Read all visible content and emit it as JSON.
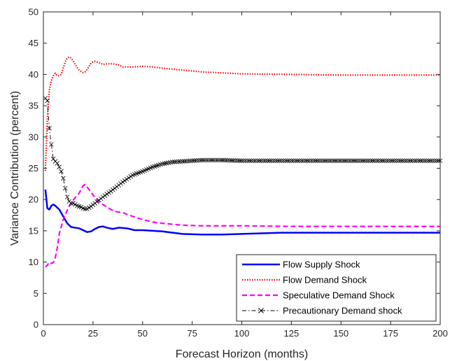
{
  "chart_data": {
    "type": "line",
    "title": "",
    "xlabel": "Forecast Horizon (months)",
    "ylabel": "Variance Contribution (percent)",
    "xlim": [
      0,
      200
    ],
    "ylim": [
      0,
      50
    ],
    "xticks": [
      "0",
      "25",
      "50",
      "75",
      "100",
      "125",
      "150",
      "175",
      "200"
    ],
    "yticks": [
      "0",
      "5",
      "10",
      "15",
      "20",
      "25",
      "30",
      "35",
      "40",
      "45",
      "50"
    ],
    "grid": false,
    "legend_position": "bottom-right",
    "series": [
      {
        "name": "Flow Supply Shock",
        "color": "#0000ff",
        "style": "solid",
        "x": [
          1,
          2,
          3,
          4,
          5,
          6,
          8,
          10,
          12,
          14,
          16,
          18,
          20,
          22,
          24,
          26,
          28,
          30,
          32,
          35,
          38,
          42,
          46,
          50,
          55,
          60,
          70,
          80,
          90,
          100,
          120,
          150,
          175,
          200
        ],
        "y": [
          21.6,
          18.6,
          18.4,
          19.0,
          19.2,
          19.0,
          18.4,
          17.3,
          16.2,
          15.6,
          15.5,
          15.4,
          15.1,
          14.8,
          14.9,
          15.3,
          15.6,
          15.7,
          15.5,
          15.3,
          15.5,
          15.4,
          15.1,
          15.1,
          15.0,
          14.9,
          14.5,
          14.4,
          14.4,
          14.5,
          14.7,
          14.7,
          14.7,
          14.7
        ]
      },
      {
        "name": "Flow Demand Shock",
        "color": "#ff0000",
        "style": "dotted",
        "x": [
          1,
          2,
          3,
          4,
          5,
          6,
          7,
          8,
          9,
          10,
          11,
          12,
          13,
          14,
          15,
          16,
          17,
          18,
          19,
          20,
          21,
          22,
          23,
          24,
          25,
          26,
          27,
          28,
          30,
          32,
          35,
          38,
          40,
          45,
          50,
          55,
          60,
          70,
          80,
          100,
          125,
          150,
          175,
          200
        ],
        "y": [
          24.6,
          33.0,
          37.5,
          39.0,
          39.8,
          40.2,
          39.8,
          39.8,
          40.0,
          41.0,
          42.0,
          42.6,
          42.8,
          42.6,
          42.2,
          41.6,
          41.1,
          40.7,
          40.5,
          40.3,
          40.4,
          40.8,
          41.3,
          41.8,
          42.0,
          42.1,
          42.0,
          41.9,
          41.6,
          41.7,
          41.7,
          41.5,
          41.2,
          41.2,
          41.3,
          41.2,
          41.0,
          40.7,
          40.4,
          40.1,
          40.0,
          39.9,
          39.9,
          39.9
        ]
      },
      {
        "name": "Speculative Demand Shock",
        "color": "#ff00ff",
        "style": "dashed",
        "x": [
          1,
          2,
          3,
          4,
          5,
          6,
          7,
          8,
          10,
          12,
          14,
          16,
          18,
          20,
          21,
          22,
          24,
          26,
          28,
          30,
          33,
          36,
          40,
          45,
          50,
          55,
          60,
          70,
          80,
          100,
          125,
          150,
          175,
          200
        ],
        "y": [
          9.2,
          9.5,
          10.0,
          9.8,
          9.9,
          10.7,
          12.3,
          14.5,
          16.8,
          18.3,
          19.5,
          20.3,
          21.0,
          22.2,
          22.4,
          22.0,
          21.2,
          20.3,
          19.6,
          19.2,
          18.6,
          18.1,
          17.9,
          17.3,
          16.8,
          16.4,
          16.2,
          15.9,
          15.8,
          15.8,
          15.7,
          15.7,
          15.7,
          15.7
        ]
      },
      {
        "name": "Precautionary Demand shock",
        "color": "#000000",
        "style": "dashdot-x",
        "x": [
          1,
          2,
          3,
          4,
          5,
          6,
          7,
          8,
          9,
          10,
          11,
          12,
          13,
          14,
          15,
          16,
          17,
          18,
          19,
          20,
          21,
          22,
          23,
          24,
          26,
          28,
          30,
          33,
          36,
          40,
          45,
          50,
          55,
          60,
          65,
          70,
          75,
          80,
          90,
          100,
          110,
          125,
          140,
          150,
          175,
          200
        ],
        "y": [
          36.2,
          35.8,
          31.4,
          28.8,
          26.5,
          26.1,
          25.8,
          25.2,
          24.5,
          23.4,
          21.8,
          20.4,
          19.7,
          19.4,
          19.4,
          19.2,
          19.0,
          18.9,
          18.8,
          18.6,
          18.5,
          18.5,
          18.7,
          18.9,
          19.4,
          19.9,
          20.4,
          21.1,
          21.8,
          22.8,
          23.9,
          24.5,
          25.2,
          25.7,
          26.0,
          26.1,
          26.2,
          26.3,
          26.3,
          26.2,
          26.2,
          26.2,
          26.2,
          26.2,
          26.2,
          26.2
        ]
      }
    ]
  }
}
